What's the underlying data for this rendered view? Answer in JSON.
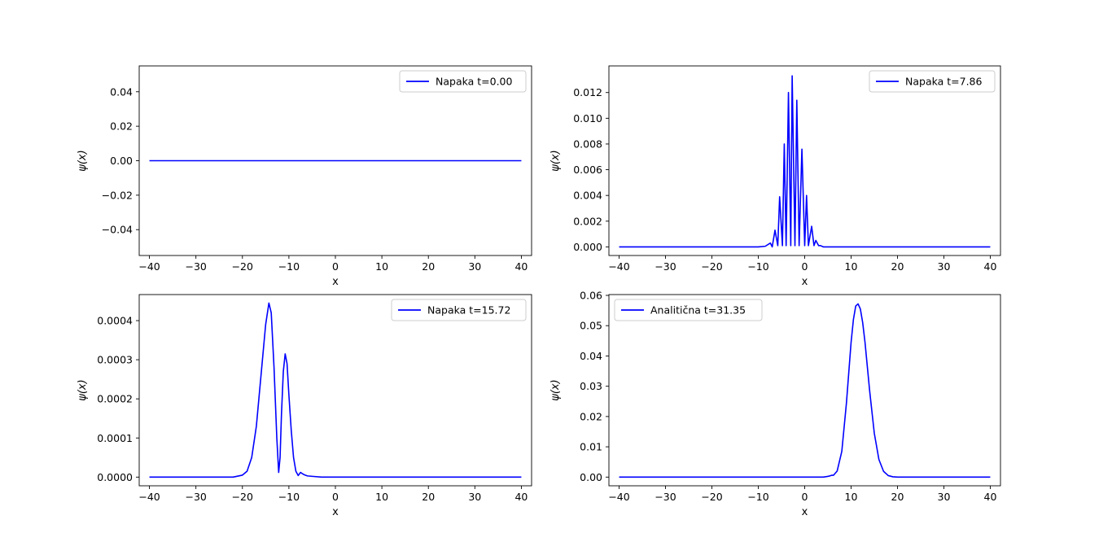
{
  "chart_data": [
    {
      "type": "line",
      "title": "",
      "xlabel": "x",
      "ylabel": "ψ(x)",
      "xlim": [
        -42.2,
        42.2
      ],
      "ylim": [
        -0.055,
        0.055
      ],
      "xticks": [
        -40,
        -30,
        -20,
        -10,
        0,
        10,
        20,
        30,
        40
      ],
      "xtick_labels": [
        "−40",
        "−30",
        "−20",
        "−10",
        "0",
        "10",
        "20",
        "30",
        "40"
      ],
      "yticks": [
        -0.04,
        -0.02,
        0.0,
        0.02,
        0.04
      ],
      "ytick_labels": [
        "−0.04",
        "−0.02",
        "0.00",
        "0.02",
        "0.04"
      ],
      "legend": {
        "position": "upper right",
        "entries": [
          "Napaka t=0.00"
        ]
      },
      "series": [
        {
          "name": "Napaka t=0.00",
          "color": "#0000ff",
          "x": [
            -40,
            40
          ],
          "y": [
            0,
            0
          ]
        }
      ]
    },
    {
      "type": "line",
      "title": "",
      "xlabel": "x",
      "ylabel": "ψ(x)",
      "xlim": [
        -42.2,
        42.2
      ],
      "ylim": [
        -0.00067,
        0.01407
      ],
      "xticks": [
        -40,
        -30,
        -20,
        -10,
        0,
        10,
        20,
        30,
        40
      ],
      "xtick_labels": [
        "−40",
        "−30",
        "−20",
        "−10",
        "0",
        "10",
        "20",
        "30",
        "40"
      ],
      "yticks": [
        0.0,
        0.002,
        0.004,
        0.006,
        0.008,
        0.01,
        0.012
      ],
      "ytick_labels": [
        "0.000",
        "0.002",
        "0.004",
        "0.006",
        "0.008",
        "0.010",
        "0.012"
      ],
      "legend": {
        "position": "upper right",
        "entries": [
          "Napaka t=7.86"
        ]
      },
      "series": [
        {
          "name": "Napaka t=7.86",
          "color": "#0000ff",
          "x": [
            -40,
            -10,
            -8.5,
            -7.4,
            -7.0,
            -6.4,
            -5.8,
            -5.4,
            -4.8,
            -4.4,
            -4.0,
            -3.5,
            -3.0,
            -2.7,
            -2.1,
            -1.7,
            -1.2,
            -0.6,
            0.0,
            0.4,
            0.8,
            1.5,
            2.0,
            2.4,
            3.0,
            3.4,
            4.0,
            4.6,
            5.1,
            5.6,
            6.1,
            6.6,
            7.2,
            8.5,
            10,
            40
          ],
          "y": [
            0,
            0,
            5e-05,
            0.0003,
            0.0,
            0.0013,
            0.0001,
            0.0039,
            0.0001,
            0.008,
            0.0001,
            0.012,
            0.0001,
            0.0133,
            0.0001,
            0.0114,
            0.0001,
            0.0076,
            0.0001,
            0.004,
            0.0001,
            0.0016,
            0.0001,
            0.0005,
            0.0001,
            0.0001,
            0,
            0,
            0,
            0,
            0,
            0,
            0,
            0,
            0,
            0
          ]
        }
      ]
    },
    {
      "type": "line",
      "title": "",
      "xlabel": "x",
      "ylabel": "ψ(x)",
      "xlim": [
        -42.2,
        42.2
      ],
      "ylim": [
        -2.22e-05,
        0.0004666
      ],
      "xticks": [
        -40,
        -30,
        -20,
        -10,
        0,
        10,
        20,
        30,
        40
      ],
      "xtick_labels": [
        "−40",
        "−30",
        "−20",
        "−10",
        "0",
        "10",
        "20",
        "30",
        "40"
      ],
      "yticks": [
        0.0,
        0.0001,
        0.0002,
        0.0003,
        0.0004
      ],
      "ytick_labels": [
        "0.0000",
        "0.0001",
        "0.0002",
        "0.0003",
        "0.0004"
      ],
      "legend": {
        "position": "upper right",
        "entries": [
          "Napaka t=15.72"
        ]
      },
      "series": [
        {
          "name": "Napaka t=15.72",
          "color": "#0000ff",
          "x": [
            -40,
            -22,
            -20,
            -19,
            -18,
            -17,
            -16,
            -15,
            -14.3,
            -13.8,
            -13.2,
            -12.6,
            -12.2,
            -11.9,
            -11.6,
            -11.2,
            -10.8,
            -10.4,
            -10.0,
            -9.5,
            -9.0,
            -8.5,
            -8.0,
            -7.5,
            -7.0,
            -6.5,
            -6.0,
            -5.0,
            -3.0,
            40
          ],
          "y": [
            0,
            0,
            5e-06,
            1.5e-05,
            5e-05,
            0.00013,
            0.00026,
            0.00039,
            0.000445,
            0.00042,
            0.00028,
            0.0001,
            1.2e-05,
            5e-05,
            0.00016,
            0.00027,
            0.000315,
            0.00029,
            0.00021,
            0.00012,
            5e-05,
            1.5e-05,
            4e-06,
            1.2e-05,
            8e-06,
            5e-06,
            3e-06,
            2e-06,
            0,
            0
          ]
        }
      ]
    },
    {
      "type": "line",
      "title": "",
      "xlabel": "x",
      "ylabel": "ψ(x)",
      "xlim": [
        -42.2,
        42.2
      ],
      "ylim": [
        -0.00287,
        0.06027
      ],
      "xticks": [
        -40,
        -30,
        -20,
        -10,
        0,
        10,
        20,
        30,
        40
      ],
      "xtick_labels": [
        "−40",
        "−30",
        "−20",
        "−10",
        "0",
        "10",
        "20",
        "30",
        "40"
      ],
      "yticks": [
        0.0,
        0.01,
        0.02,
        0.03,
        0.04,
        0.05,
        0.06
      ],
      "ytick_labels": [
        "0.00",
        "0.01",
        "0.02",
        "0.03",
        "0.04",
        "0.05",
        "0.06"
      ],
      "legend": {
        "position": "upper left",
        "entries": [
          "Analitična t=31.35"
        ]
      },
      "series": [
        {
          "name": "Analitična t=31.35",
          "color": "#0000ff",
          "x": [
            -40,
            4,
            5.2,
            5.8,
            6.2,
            7,
            8,
            9,
            10,
            10.5,
            11,
            11.5,
            12,
            12.5,
            13,
            14,
            15,
            16,
            17,
            18,
            19,
            20,
            40
          ],
          "y": [
            0,
            0,
            0.0003,
            0.0006,
            0.0006,
            0.002,
            0.0085,
            0.0245,
            0.0445,
            0.052,
            0.0565,
            0.0572,
            0.0555,
            0.051,
            0.0445,
            0.0285,
            0.0145,
            0.0058,
            0.0019,
            0.0005,
            0.0001,
            0,
            0
          ]
        }
      ]
    }
  ]
}
